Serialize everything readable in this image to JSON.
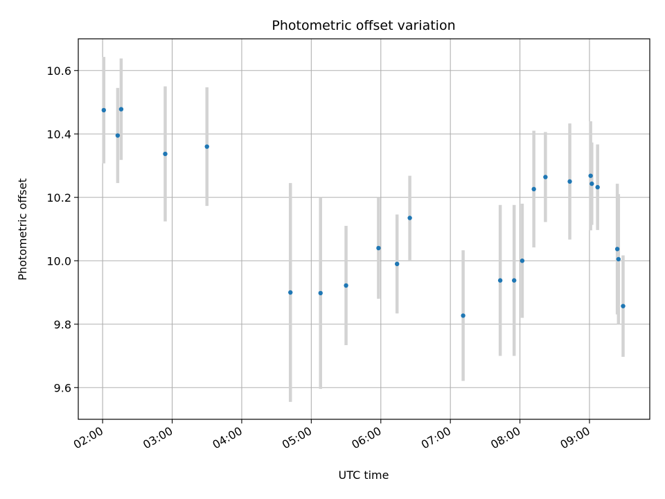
{
  "chart_data": {
    "type": "scatter",
    "title": "Photometric offset variation",
    "xlabel": "UTC time",
    "ylabel": "Photometric offset",
    "x_ticks": [
      "02:00",
      "03:00",
      "04:00",
      "05:00",
      "06:00",
      "07:00",
      "08:00",
      "09:00"
    ],
    "y_ticks": [
      9.6,
      9.8,
      10.0,
      10.2,
      10.4,
      10.6
    ],
    "xlim": [
      "01:39",
      "09:52"
    ],
    "ylim": [
      9.5,
      10.7
    ],
    "grid": true,
    "error_bar_color": "#d3d3d3",
    "point_color": "#1f77b4",
    "points": [
      {
        "time": "02:01",
        "y": 10.475,
        "err": 0.168
      },
      {
        "time": "02:13",
        "y": 10.395,
        "err": 0.15
      },
      {
        "time": "02:16",
        "y": 10.478,
        "err": 0.16
      },
      {
        "time": "02:54",
        "y": 10.337,
        "err": 0.213
      },
      {
        "time": "03:30",
        "y": 10.36,
        "err": 0.187
      },
      {
        "time": "04:42",
        "y": 9.9,
        "err": 0.345
      },
      {
        "time": "05:08",
        "y": 9.898,
        "err": 0.302
      },
      {
        "time": "05:30",
        "y": 9.922,
        "err": 0.188
      },
      {
        "time": "05:58",
        "y": 10.04,
        "err": 0.16
      },
      {
        "time": "06:14",
        "y": 9.99,
        "err": 0.156
      },
      {
        "time": "06:25",
        "y": 10.135,
        "err": 0.133
      },
      {
        "time": "07:11",
        "y": 9.827,
        "err": 0.206
      },
      {
        "time": "07:43",
        "y": 9.938,
        "err": 0.238
      },
      {
        "time": "07:55",
        "y": 9.938,
        "err": 0.238
      },
      {
        "time": "08:02",
        "y": 10.0,
        "err": 0.18
      },
      {
        "time": "08:12",
        "y": 10.226,
        "err": 0.184
      },
      {
        "time": "08:22",
        "y": 10.264,
        "err": 0.142
      },
      {
        "time": "08:43",
        "y": 10.25,
        "err": 0.183
      },
      {
        "time": "09:01",
        "y": 10.268,
        "err": 0.172
      },
      {
        "time": "09:02",
        "y": 10.243,
        "err": 0.13
      },
      {
        "time": "09:07",
        "y": 10.232,
        "err": 0.135
      },
      {
        "time": "09:24",
        "y": 10.037,
        "err": 0.206
      },
      {
        "time": "09:25",
        "y": 10.005,
        "err": 0.205
      },
      {
        "time": "09:29",
        "y": 9.857,
        "err": 0.16
      }
    ]
  }
}
